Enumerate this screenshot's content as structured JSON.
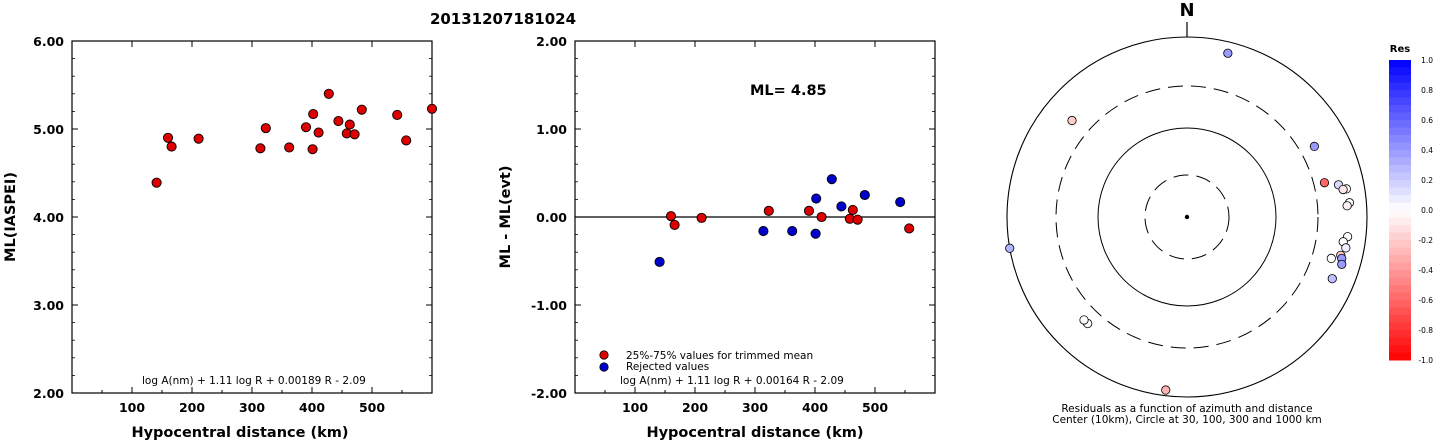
{
  "title": "20131207181024",
  "chart_data": [
    {
      "type": "scatter",
      "xlabel": "Hypocentral distance (km)",
      "ylabel": "ML(IASPEI)",
      "xlim": [
        0,
        600
      ],
      "ylim": [
        2.0,
        6.0
      ],
      "x_ticks": [
        "100",
        "200",
        "300",
        "400",
        "500"
      ],
      "y_ticks": [
        "2.00",
        "3.00",
        "4.00",
        "5.00",
        "6.00"
      ],
      "formula": "log A(nm) + 1.11 log R + 0.00189 R - 2.09",
      "series": [
        {
          "color": "#dd0000",
          "points": [
            [
              141,
              4.39
            ],
            [
              160,
              4.9
            ],
            [
              166,
              4.8
            ],
            [
              211,
              4.89
            ],
            [
              314,
              4.78
            ],
            [
              323,
              5.01
            ],
            [
              362,
              4.79
            ],
            [
              390,
              5.02
            ],
            [
              401,
              4.77
            ],
            [
              402,
              5.17
            ],
            [
              411,
              4.96
            ],
            [
              428,
              5.4
            ],
            [
              444,
              5.09
            ],
            [
              458,
              4.95
            ],
            [
              463,
              5.05
            ],
            [
              471,
              4.94
            ],
            [
              483,
              5.22
            ],
            [
              542,
              5.16
            ],
            [
              557,
              4.87
            ],
            [
              600,
              5.23
            ]
          ]
        }
      ]
    },
    {
      "type": "scatter",
      "annotation": "ML= 4.85",
      "xlabel": "Hypocentral distance (km)",
      "ylabel": "ML - ML(evt)",
      "xlim": [
        0,
        600
      ],
      "ylim": [
        -2.0,
        2.0
      ],
      "x_ticks": [
        "100",
        "200",
        "300",
        "400",
        "500"
      ],
      "y_ticks": [
        "-2.00",
        "-1.00",
        "0.00",
        "1.00",
        "2.00"
      ],
      "legend": [
        "25%-75% values for trimmed mean",
        "Rejected values"
      ],
      "formula": "log A(nm) + 1.11 log R + 0.00164 R - 2.09",
      "series": [
        {
          "name": "25%-75% values for trimmed mean",
          "color": "#dd0000",
          "points": [
            [
              160,
              0.01
            ],
            [
              166,
              -0.09
            ],
            [
              211,
              -0.01
            ],
            [
              323,
              0.07
            ],
            [
              390,
              0.07
            ],
            [
              411,
              0.0
            ],
            [
              458,
              -0.02
            ],
            [
              463,
              0.08
            ],
            [
              471,
              -0.03
            ],
            [
              557,
              -0.13
            ]
          ]
        },
        {
          "name": "Rejected values",
          "color": "#0000cc",
          "points": [
            [
              141,
              -0.51
            ],
            [
              314,
              -0.16
            ],
            [
              362,
              -0.16
            ],
            [
              401,
              -0.19
            ],
            [
              402,
              0.21
            ],
            [
              428,
              0.43
            ],
            [
              444,
              0.12
            ],
            [
              483,
              0.25
            ],
            [
              542,
              0.17
            ]
          ]
        }
      ]
    },
    {
      "type": "scatter",
      "north_label": "N",
      "caption_line1": "Residuals as a function of azimuth and distance",
      "caption_line2": "Center (10km), Circle at 30, 100, 300 and 1000 km",
      "colorbar_title": "Res",
      "colorbar_ticks": [
        "1.0",
        "0.8",
        "0.6",
        "0.4",
        "0.2",
        "0.0",
        "-0.2",
        "-0.4",
        "-0.6",
        "-0.8",
        "-1.0"
      ],
      "stations": [
        {
          "az": 14,
          "dist": 760,
          "res": 0.4
        },
        {
          "az": 61,
          "dist": 430,
          "res": 0.4
        },
        {
          "az": 78,
          "dist": 540,
          "res": 0.15
        },
        {
          "az": 85,
          "dist": 660,
          "res": 0.0
        },
        {
          "az": 80,
          "dist": 640,
          "res": 0.0
        },
        {
          "az": 80,
          "dist": 590,
          "res": -0.1
        },
        {
          "az": 86,
          "dist": 620,
          "res": -0.05
        },
        {
          "az": 97,
          "dist": 640,
          "res": 0.0
        },
        {
          "az": 99,
          "dist": 585,
          "res": 0.0
        },
        {
          "az": 101,
          "dist": 640,
          "res": 0.05
        },
        {
          "az": 104,
          "dist": 590,
          "res": -0.2
        },
        {
          "az": 105,
          "dist": 615,
          "res": 0.4
        },
        {
          "az": 107,
          "dist": 640,
          "res": 0.4
        },
        {
          "az": 106,
          "dist": 480,
          "res": 0.0
        },
        {
          "az": 113,
          "dist": 580,
          "res": 0.25
        },
        {
          "az": 76,
          "dist": 390,
          "res": -0.6
        },
        {
          "az": 187,
          "dist": 870,
          "res": -0.3
        },
        {
          "az": 223,
          "dist": 430,
          "res": 0.0
        },
        {
          "az": 225,
          "dist": 430,
          "res": 0.0
        },
        {
          "az": 260,
          "dist": 1000,
          "res": 0.3
        },
        {
          "az": 310,
          "dist": 480,
          "res": -0.2
        }
      ]
    }
  ]
}
